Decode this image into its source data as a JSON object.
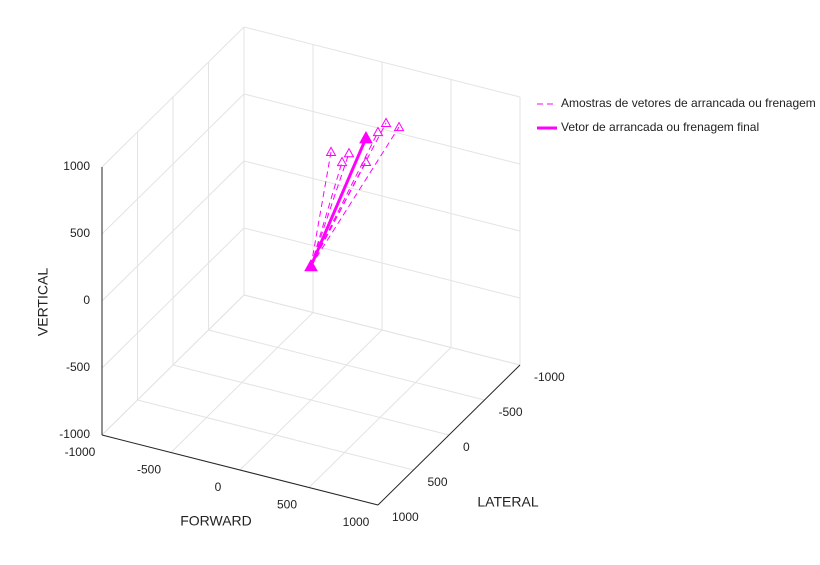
{
  "chart_data": {
    "type": "line3d",
    "xlabel": "FORWARD",
    "ylabel": "LATERAL",
    "zlabel": "VERTICAL",
    "xlim": [
      -1000,
      1000
    ],
    "ylim": [
      -1000,
      1000
    ],
    "zlim": [
      -1000,
      1000
    ],
    "xticks": [
      -1000,
      -500,
      0,
      500,
      1000
    ],
    "yticks": [
      -1000,
      -500,
      0,
      500,
      1000
    ],
    "zticks": [
      -1000,
      -500,
      0,
      500,
      1000
    ],
    "grid": true,
    "legend_position": "outside-right",
    "series": [
      {
        "name": "Amostras de vetores de arrancada ou frenagem",
        "color": "#ff00ff",
        "line_style": "dashed",
        "marker": "open-triangle",
        "vectors": [
          {
            "x": [
              0,
              0
            ],
            "y": [
              0,
              -282
            ],
            "z": [
              0,
              704
            ]
          },
          {
            "x": [
              0,
              0
            ],
            "y": [
              0,
              -535
            ],
            "z": [
              0,
              563
            ]
          },
          {
            "x": [
              0,
              0
            ],
            "y": [
              0,
              -437
            ],
            "z": [
              0,
              548
            ]
          },
          {
            "x": [
              0,
              0
            ],
            "y": [
              0,
              -775
            ],
            "z": [
              0,
              372
            ]
          },
          {
            "x": [
              0,
              100
            ],
            "y": [
              0,
              -749
            ],
            "z": [
              0,
              635
            ]
          },
          {
            "x": [
              0,
              150
            ],
            "y": [
              0,
              -765
            ],
            "z": [
              0,
              707
            ]
          },
          {
            "x": [
              0,
              200
            ],
            "y": [
              0,
              -851
            ],
            "z": [
              0,
              645
            ]
          }
        ]
      },
      {
        "name": "Vetor de arrancada ou frenagem final",
        "color": "#ff00ff",
        "line_style": "solid",
        "marker": "filled-triangle",
        "vectors": [
          {
            "x": [
              0,
              100
            ],
            "y": [
              0,
              -580
            ],
            "z": [
              0,
              678
            ]
          }
        ]
      }
    ]
  }
}
